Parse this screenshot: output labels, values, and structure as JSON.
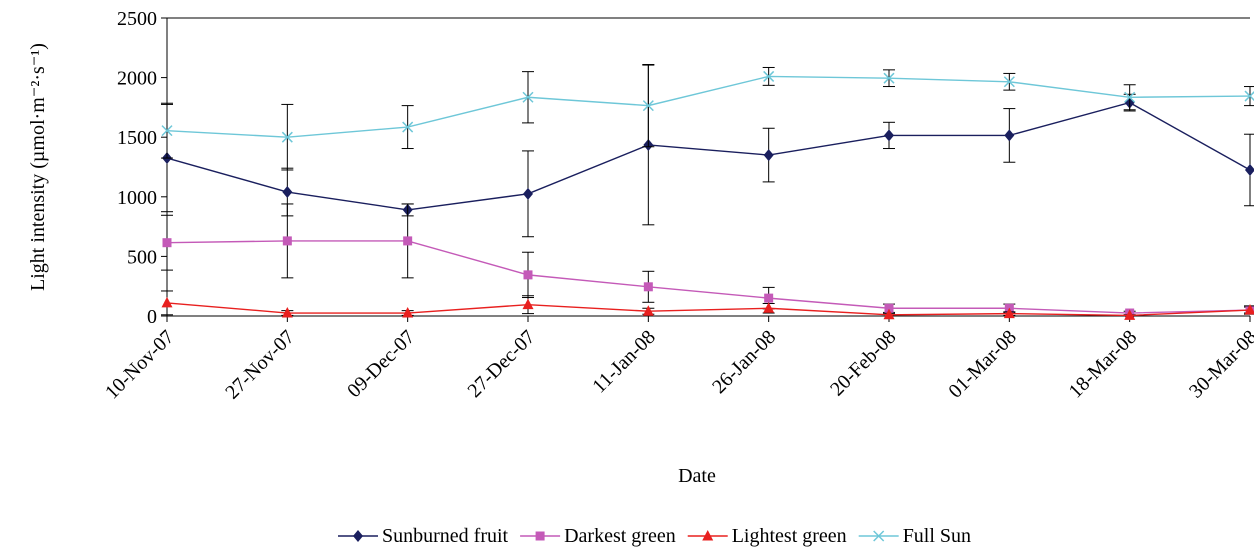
{
  "chart_data": {
    "type": "line",
    "xlabel": "Date",
    "ylabel": "Light intensity (µmol·m⁻²·s⁻¹)",
    "ylim": [
      0,
      2500
    ],
    "yticks": [
      0,
      500,
      1000,
      1500,
      2000,
      2500
    ],
    "categories": [
      "10-Nov-07",
      "27-Nov-07",
      "09-Dec-07",
      "27-Dec-07",
      "11-Jan-08",
      "26-Jan-08",
      "20-Feb-08",
      "01-Mar-08",
      "18-Mar-08",
      "30-Mar-08"
    ],
    "grid": false,
    "legend_position": "bottom",
    "series": [
      {
        "name": "Sunburned fruit",
        "color": "#1a1f5e",
        "marker": "diamond",
        "values": [
          1325,
          1040,
          890,
          1025,
          1435,
          1350,
          1515,
          1515,
          1790,
          1225
        ],
        "errors": [
          450,
          200,
          50,
          360,
          670,
          225,
          110,
          225,
          70,
          300
        ]
      },
      {
        "name": "Darkest green",
        "color": "#c45ab8",
        "marker": "square",
        "values": [
          615,
          630,
          630,
          345,
          245,
          150,
          65,
          65,
          25,
          50
        ],
        "errors": [
          230,
          310,
          310,
          190,
          130,
          90,
          35,
          35,
          15,
          25
        ]
      },
      {
        "name": "Lightest green",
        "color": "#e8201f",
        "marker": "triangle",
        "values": [
          110,
          25,
          25,
          95,
          40,
          65,
          10,
          20,
          5,
          50
        ],
        "errors": [
          100,
          20,
          20,
          75,
          25,
          40,
          10,
          15,
          5,
          35
        ]
      },
      {
        "name": "Full Sun",
        "color": "#6ec7d8",
        "marker": "x",
        "values": [
          1555,
          1500,
          1585,
          1835,
          1765,
          2010,
          1995,
          1965,
          1835,
          1845
        ],
        "errors": [
          230,
          275,
          180,
          215,
          345,
          75,
          70,
          70,
          105,
          80
        ]
      }
    ]
  }
}
